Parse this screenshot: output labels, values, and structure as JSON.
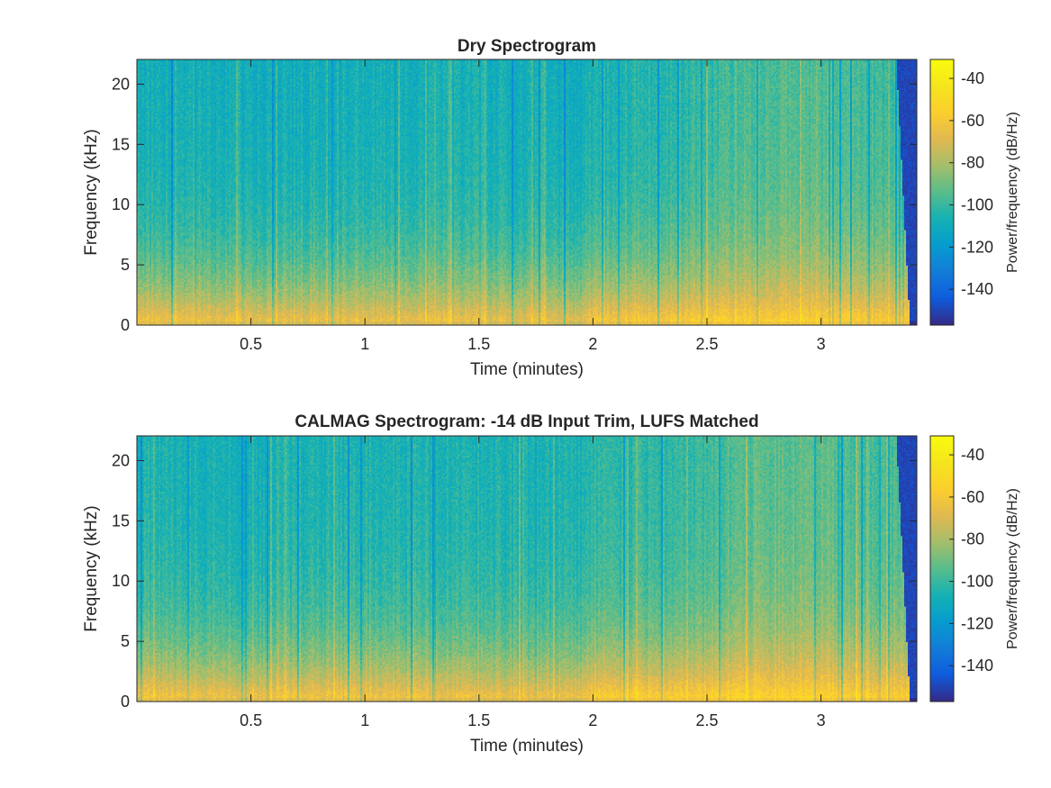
{
  "chart_data": [
    {
      "type": "heatmap",
      "title": "Dry Spectrogram",
      "xlabel": "Time (minutes)",
      "ylabel": "Frequency (kHz)",
      "colorbar_label": "Power/frequency (dB/Hz)",
      "xlim": [
        0,
        3.42
      ],
      "ylim": [
        0,
        22.05
      ],
      "clim": [
        -157,
        -31
      ],
      "xticks": [
        0.5,
        1,
        1.5,
        2,
        2.5,
        3
      ],
      "xtick_labels": [
        "0.5",
        "1",
        "1.5",
        "2",
        "2.5",
        "3"
      ],
      "yticks": [
        0,
        5,
        10,
        15,
        20
      ],
      "ytick_labels": [
        "0",
        "5",
        "10",
        "15",
        "20"
      ],
      "cticks": [
        -40,
        -60,
        -80,
        -100,
        -120,
        -140
      ],
      "ctick_labels": [
        "-40",
        "-60",
        "-80",
        "-100",
        "-120",
        "-140"
      ],
      "colormap": "parula",
      "signal_end_min": 3.36,
      "level_profile_db": {
        "time_min": [
          0,
          0.5,
          1,
          1.5,
          1.95,
          2.0,
          2.5,
          2.75,
          3.0,
          3.3
        ],
        "low_band_db": [
          -58,
          -62,
          -60,
          -62,
          -64,
          -56,
          -54,
          -52,
          -52,
          -56
        ],
        "high_band_db": [
          -108,
          -110,
          -108,
          -108,
          -110,
          -106,
          -102,
          -96,
          -96,
          -100
        ]
      }
    },
    {
      "type": "heatmap",
      "title": "CALMAG Spectrogram: -14 dB Input Trim, LUFS Matched",
      "xlabel": "Time (minutes)",
      "ylabel": "Frequency (kHz)",
      "colorbar_label": "Power/frequency (dB/Hz)",
      "xlim": [
        0,
        3.42
      ],
      "ylim": [
        0,
        22.05
      ],
      "clim": [
        -157,
        -31
      ],
      "xticks": [
        0.5,
        1,
        1.5,
        2,
        2.5,
        3
      ],
      "xtick_labels": [
        "0.5",
        "1",
        "1.5",
        "2",
        "2.5",
        "3"
      ],
      "yticks": [
        0,
        5,
        10,
        15,
        20
      ],
      "ytick_labels": [
        "0",
        "5",
        "10",
        "15",
        "20"
      ],
      "cticks": [
        -40,
        -60,
        -80,
        -100,
        -120,
        -140
      ],
      "ctick_labels": [
        "-40",
        "-60",
        "-80",
        "-100",
        "-120",
        "-140"
      ],
      "colormap": "parula",
      "signal_end_min": 3.36,
      "level_profile_db": {
        "time_min": [
          0,
          0.5,
          1,
          1.5,
          1.95,
          2.0,
          2.5,
          2.75,
          3.0,
          3.3
        ],
        "low_band_db": [
          -57,
          -60,
          -58,
          -60,
          -62,
          -54,
          -52,
          -50,
          -50,
          -54
        ],
        "high_band_db": [
          -106,
          -108,
          -106,
          -106,
          -108,
          -104,
          -100,
          -94,
          -94,
          -98
        ]
      }
    }
  ],
  "colors": {
    "background": "#ffffff",
    "axis": "#262626",
    "parula_low": "#352a87",
    "parula_high": "#f9fb0e"
  }
}
